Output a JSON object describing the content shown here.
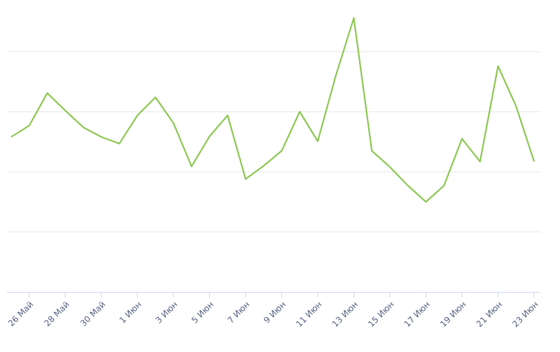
{
  "chart_data": {
    "type": "line",
    "categories": [
      null,
      "26 Май",
      null,
      "28 Май",
      null,
      "30 Май",
      null,
      "1 Июн",
      null,
      "3 Июн",
      null,
      "5 Июн",
      null,
      "7 Июн",
      null,
      "9 Июн",
      null,
      "11 Июн",
      null,
      "13 Июн",
      null,
      "15 Июн",
      null,
      "17 Июн",
      null,
      "19 Июн",
      null,
      "21 Июн",
      null,
      "23 Июн"
    ],
    "series": [
      {
        "color": "#8cc751",
        "values": [
          2.58,
          2.77,
          3.31,
          3.02,
          2.74,
          2.58,
          2.47,
          2.94,
          3.24,
          2.81,
          2.09,
          2.59,
          2.94,
          1.88,
          2.1,
          2.35,
          3.0,
          2.51,
          3.6,
          4.56,
          2.35,
          2.08,
          1.77,
          1.5,
          1.77,
          2.55,
          2.17,
          3.76,
          3.09,
          2.17
        ]
      }
    ],
    "ylim": [
      0,
      5
    ],
    "yticks": [
      1,
      2,
      3,
      4
    ],
    "grid": true
  }
}
